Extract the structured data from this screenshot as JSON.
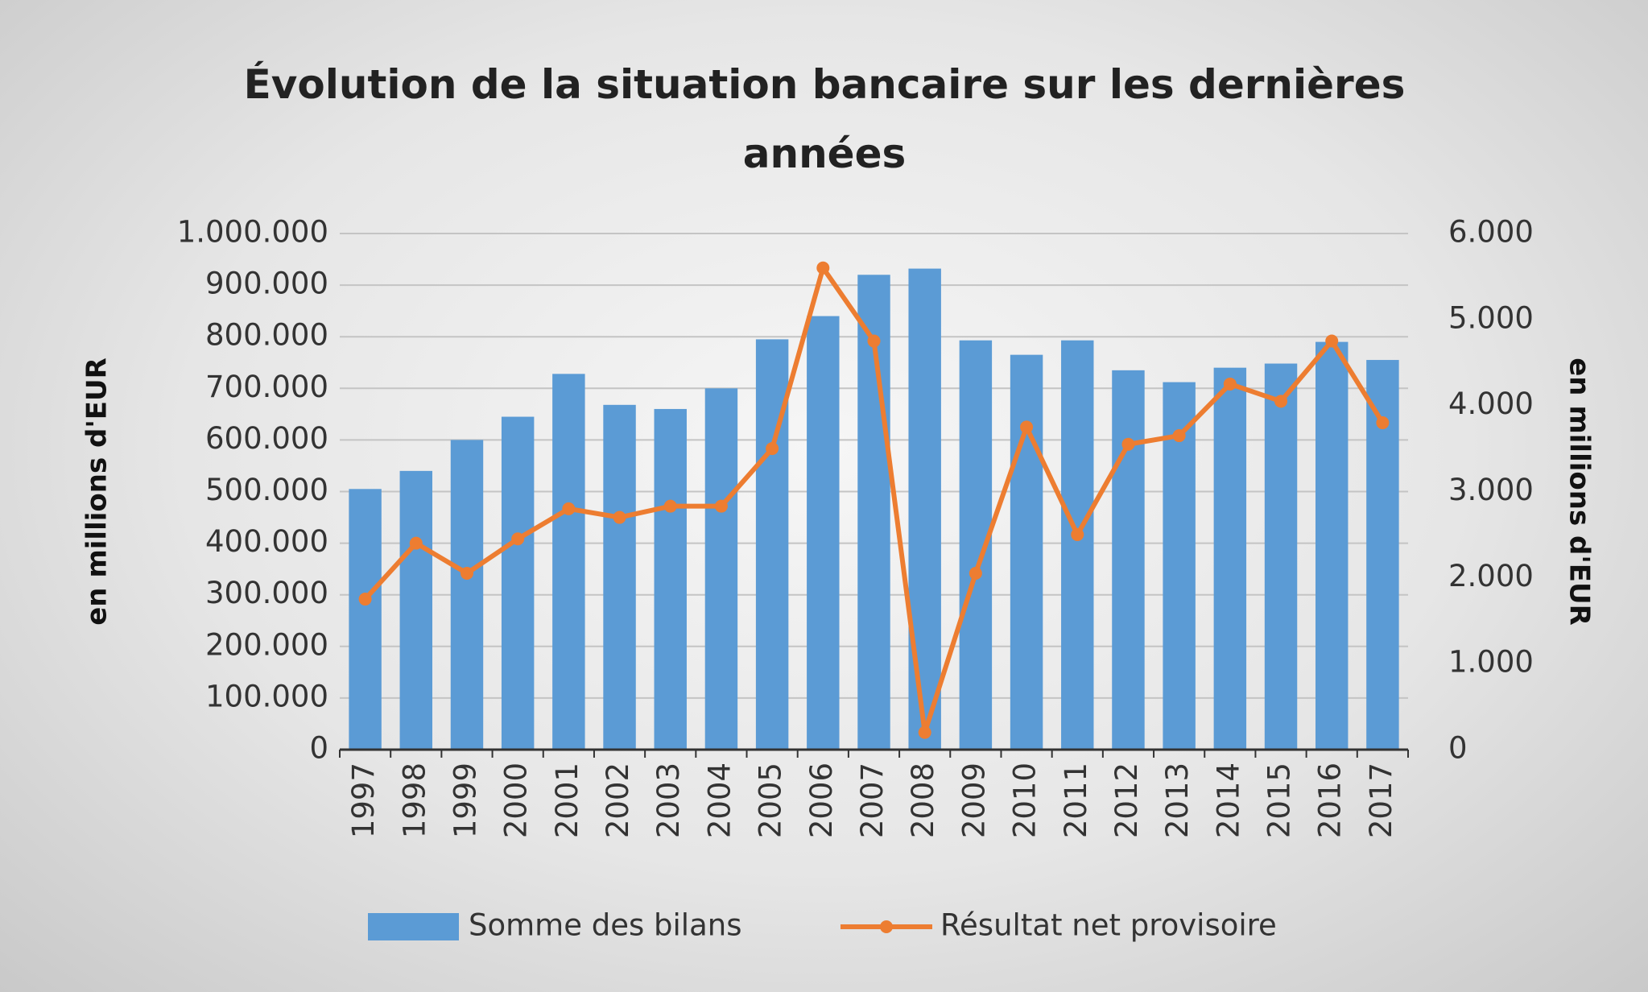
{
  "chart_data": {
    "type": "bar-line",
    "title": "Évolution de la situation bancaire sur les dernières années",
    "y_label": "en millions d'EUR",
    "y2_label": "en millions d'EUR",
    "categories": [
      "1997",
      "1998",
      "1999",
      "2000",
      "2001",
      "2002",
      "2003",
      "2004",
      "2005",
      "2006",
      "2007",
      "2008",
      "2009",
      "2010",
      "2011",
      "2012",
      "2013",
      "2014",
      "2015",
      "2016",
      "2017"
    ],
    "series": [
      {
        "name": "Somme des bilans",
        "type": "bar",
        "color": "#5b9bd5",
        "axis": "y",
        "values": [
          505000,
          540000,
          600000,
          645000,
          728000,
          668000,
          660000,
          700000,
          795000,
          840000,
          920000,
          932000,
          793000,
          765000,
          793000,
          735000,
          712000,
          740000,
          748000,
          790000,
          755000
        ]
      },
      {
        "name": "Résultat net provisoire",
        "type": "line",
        "color": "#ed7d31",
        "axis": "y2",
        "values": [
          1750,
          2400,
          2050,
          2450,
          2800,
          2700,
          2830,
          2830,
          3500,
          5600,
          4750,
          200,
          2050,
          3750,
          2500,
          3550,
          3650,
          4250,
          4050,
          4750,
          3800
        ]
      }
    ],
    "ylim": [
      0,
      1000000
    ],
    "yticks": [
      0,
      {
        "value": 100000,
        "label": "100.000"
      },
      {
        "value": 200000,
        "label": "200.000"
      },
      {
        "value": 300000,
        "label": "300.000"
      },
      {
        "value": 400000,
        "label": "400.000"
      },
      {
        "value": 500000,
        "label": "500.000"
      },
      {
        "value": 600000,
        "label": "600.000"
      },
      {
        "value": 700000,
        "label": "700.000"
      },
      {
        "value": 800000,
        "label": "800.000"
      },
      {
        "value": 900000,
        "label": "900.000"
      },
      {
        "value": 1000000,
        "label": "1.000.000"
      }
    ],
    "y2lim": [
      0,
      6000
    ],
    "y2ticks": [
      0,
      {
        "value": 1000,
        "label": "1.000"
      },
      {
        "value": 2000,
        "label": "2.000"
      },
      {
        "value": 3000,
        "label": "3.000"
      },
      {
        "value": 4000,
        "label": "4.000"
      },
      {
        "value": 5000,
        "label": "5.000"
      },
      {
        "value": 6000,
        "label": "6.000"
      }
    ],
    "grid": true,
    "legend": "bottom"
  }
}
